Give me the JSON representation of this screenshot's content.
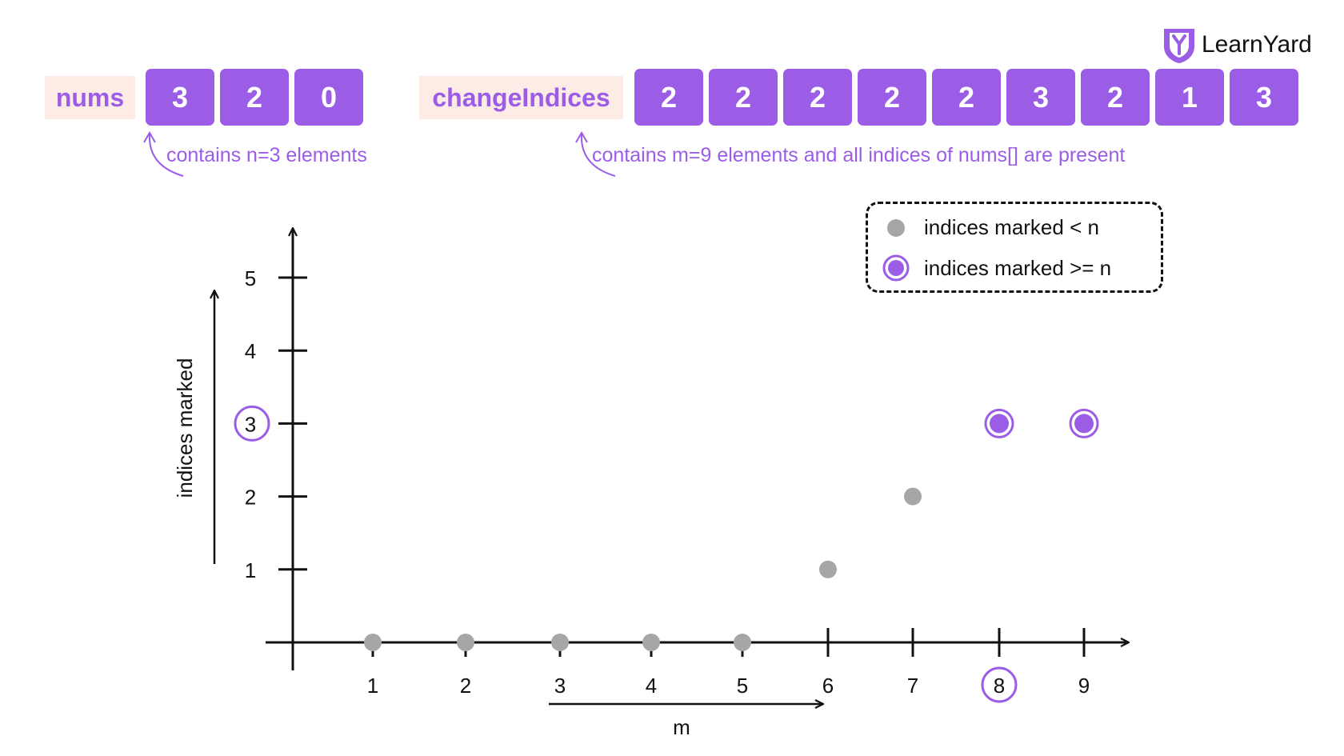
{
  "header": {
    "nums_label": "nums",
    "nums": [
      "3",
      "2",
      "0"
    ],
    "nums_note": "contains n=3 elements",
    "change_label": "changeIndices",
    "change_indices": [
      "2",
      "2",
      "2",
      "2",
      "2",
      "3",
      "2",
      "1",
      "3"
    ],
    "change_note": "contains m=9 elements and all indices of nums[] are present"
  },
  "logo": {
    "text": "LearnYard"
  },
  "colors": {
    "accent": "#9b5de5",
    "label_bg": "#fdece6",
    "gray_point": "#a6a6a6",
    "axis": "#111111"
  },
  "chart_data": {
    "type": "scatter",
    "xlabel": "m",
    "ylabel": "indices marked",
    "x_ticks": [
      "1",
      "2",
      "3",
      "4",
      "5",
      "6",
      "7",
      "8",
      "9"
    ],
    "y_ticks": [
      "1",
      "2",
      "3",
      "4",
      "5"
    ],
    "highlighted_x_tick": "8",
    "highlighted_y_tick": "3",
    "legend": [
      {
        "label": "indices marked < n",
        "style": "gray"
      },
      {
        "label": "indices marked >= n",
        "style": "purple"
      }
    ],
    "legend_position": "top-right",
    "points": [
      {
        "x": 1,
        "y": 0,
        "style": "gray"
      },
      {
        "x": 2,
        "y": 0,
        "style": "gray"
      },
      {
        "x": 3,
        "y": 0,
        "style": "gray"
      },
      {
        "x": 4,
        "y": 0,
        "style": "gray"
      },
      {
        "x": 5,
        "y": 0,
        "style": "gray"
      },
      {
        "x": 6,
        "y": 1,
        "style": "gray"
      },
      {
        "x": 7,
        "y": 2,
        "style": "gray"
      },
      {
        "x": 8,
        "y": 3,
        "style": "purple"
      },
      {
        "x": 9,
        "y": 3,
        "style": "purple"
      }
    ]
  }
}
